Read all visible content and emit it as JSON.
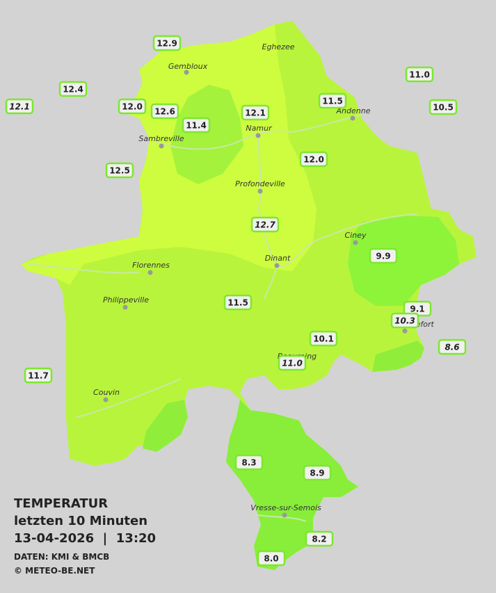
{
  "title": "TEMPERATUR",
  "subtitle": "letzten 10 Minuten",
  "datetime": "13-04-2026  |  13:20",
  "source": "DATEN: KMI & BMCB",
  "copyright": "© METEO-BE.NET",
  "cities": [
    "Eghezee",
    "Gembloux",
    "Andenne",
    "Namur",
    "Sambreville",
    "Profondeville",
    "Ciney",
    "Dinant",
    "Florennes",
    "Philippeville",
    "Rochefort",
    "Beauraing",
    "Couvin",
    "Vresse-sur-Semois"
  ],
  "stations": [
    {
      "value": "12.9",
      "italic": false
    },
    {
      "value": "12.4",
      "italic": false
    },
    {
      "value": "12.1",
      "italic": true
    },
    {
      "value": "12.0",
      "italic": false
    },
    {
      "value": "12.6",
      "italic": false
    },
    {
      "value": "11.4",
      "italic": false
    },
    {
      "value": "12.1",
      "italic": false
    },
    {
      "value": "11.5",
      "italic": false
    },
    {
      "value": "11.0",
      "italic": false
    },
    {
      "value": "10.5",
      "italic": false
    },
    {
      "value": "12.5",
      "italic": false
    },
    {
      "value": "12.0",
      "italic": false
    },
    {
      "value": "12.7",
      "italic": true
    },
    {
      "value": "9.9",
      "italic": false
    },
    {
      "value": "11.5",
      "italic": false
    },
    {
      "value": "9.1",
      "italic": false
    },
    {
      "value": "10.3",
      "italic": true
    },
    {
      "value": "10.1",
      "italic": false
    },
    {
      "value": "11.0",
      "italic": true
    },
    {
      "value": "8.6",
      "italic": true
    },
    {
      "value": "11.7",
      "italic": false
    },
    {
      "value": "8.3",
      "italic": false
    },
    {
      "value": "8.9",
      "italic": false
    },
    {
      "value": "8.2",
      "italic": false
    },
    {
      "value": "8.0",
      "italic": false
    }
  ]
}
